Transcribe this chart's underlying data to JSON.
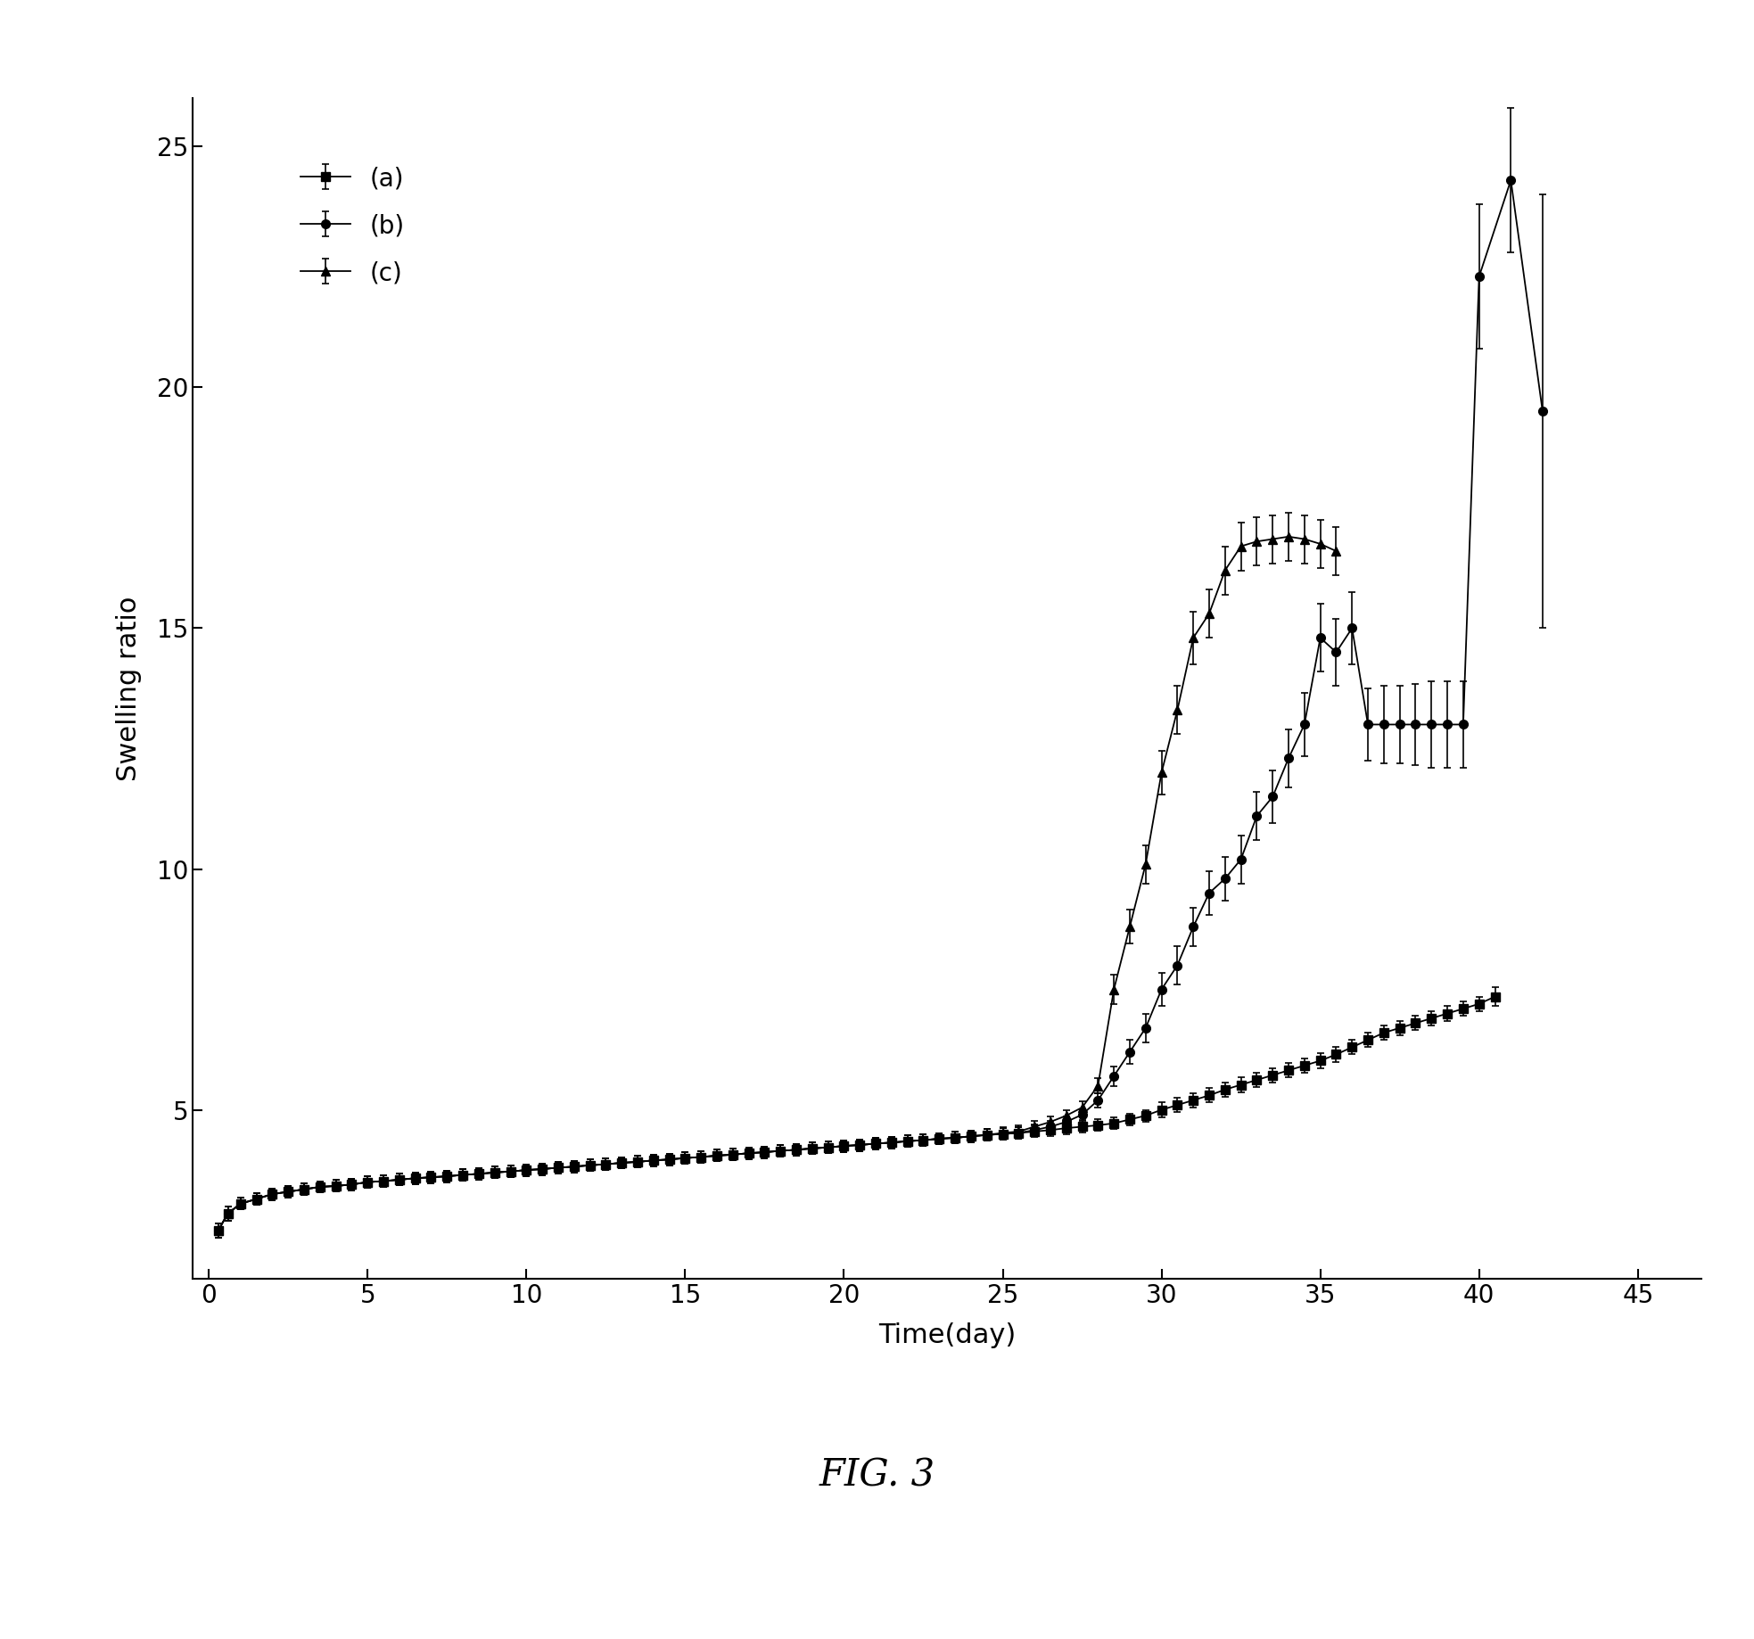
{
  "title": "",
  "xlabel": "Time(day)",
  "ylabel": "Swelling ratio",
  "fig_label": "FIG. 3",
  "xlim": [
    -0.5,
    47
  ],
  "ylim": [
    1.5,
    26
  ],
  "xticks": [
    0,
    5,
    10,
    15,
    20,
    25,
    30,
    35,
    40,
    45
  ],
  "yticks": [
    5,
    10,
    15,
    20,
    25
  ],
  "legend_labels": [
    "(a)",
    "(b)",
    "(c)"
  ],
  "series_a": {
    "x": [
      0.3,
      0.6,
      1,
      1.5,
      2,
      2.5,
      3,
      3.5,
      4,
      4.5,
      5,
      5.5,
      6,
      6.5,
      7,
      7.5,
      8,
      8.5,
      9,
      9.5,
      10,
      10.5,
      11,
      11.5,
      12,
      12.5,
      13,
      13.5,
      14,
      14.5,
      15,
      15.5,
      16,
      16.5,
      17,
      17.5,
      18,
      18.5,
      19,
      19.5,
      20,
      20.5,
      21,
      21.5,
      22,
      22.5,
      23,
      23.5,
      24,
      24.5,
      25,
      25.5,
      26,
      26.5,
      27,
      27.5,
      28,
      28.5,
      29,
      29.5,
      30,
      30.5,
      31,
      31.5,
      32,
      32.5,
      33,
      33.5,
      34,
      34.5,
      35,
      35.5,
      36,
      36.5,
      37,
      37.5,
      38,
      38.5,
      39,
      39.5,
      40,
      40.5
    ],
    "y": [
      2.5,
      2.85,
      3.05,
      3.15,
      3.25,
      3.3,
      3.35,
      3.4,
      3.42,
      3.45,
      3.5,
      3.52,
      3.55,
      3.58,
      3.6,
      3.62,
      3.65,
      3.67,
      3.7,
      3.72,
      3.75,
      3.77,
      3.8,
      3.82,
      3.85,
      3.87,
      3.9,
      3.92,
      3.95,
      3.97,
      4.0,
      4.02,
      4.05,
      4.07,
      4.1,
      4.12,
      4.15,
      4.17,
      4.2,
      4.22,
      4.25,
      4.27,
      4.3,
      4.32,
      4.35,
      4.37,
      4.4,
      4.42,
      4.45,
      4.48,
      4.5,
      4.52,
      4.55,
      4.58,
      4.62,
      4.65,
      4.68,
      4.72,
      4.8,
      4.88,
      5.0,
      5.1,
      5.2,
      5.3,
      5.42,
      5.52,
      5.62,
      5.72,
      5.82,
      5.92,
      6.02,
      6.15,
      6.3,
      6.45,
      6.6,
      6.7,
      6.8,
      6.9,
      7.0,
      7.1,
      7.2,
      7.35
    ],
    "yerr": [
      0.15,
      0.15,
      0.12,
      0.12,
      0.12,
      0.12,
      0.12,
      0.12,
      0.12,
      0.12,
      0.12,
      0.12,
      0.12,
      0.12,
      0.12,
      0.12,
      0.12,
      0.12,
      0.12,
      0.12,
      0.12,
      0.12,
      0.12,
      0.12,
      0.12,
      0.12,
      0.12,
      0.12,
      0.12,
      0.12,
      0.12,
      0.12,
      0.12,
      0.12,
      0.12,
      0.12,
      0.12,
      0.12,
      0.12,
      0.12,
      0.12,
      0.12,
      0.12,
      0.12,
      0.12,
      0.12,
      0.12,
      0.12,
      0.12,
      0.12,
      0.12,
      0.12,
      0.12,
      0.12,
      0.12,
      0.12,
      0.12,
      0.12,
      0.12,
      0.12,
      0.15,
      0.15,
      0.15,
      0.15,
      0.15,
      0.15,
      0.15,
      0.15,
      0.15,
      0.15,
      0.15,
      0.15,
      0.15,
      0.15,
      0.15,
      0.15,
      0.15,
      0.15,
      0.15,
      0.15,
      0.15,
      0.2
    ]
  },
  "series_b": {
    "x": [
      0.3,
      0.6,
      1,
      1.5,
      2,
      2.5,
      3,
      3.5,
      4,
      4.5,
      5,
      5.5,
      6,
      6.5,
      7,
      7.5,
      8,
      8.5,
      9,
      9.5,
      10,
      10.5,
      11,
      11.5,
      12,
      12.5,
      13,
      13.5,
      14,
      14.5,
      15,
      15.5,
      16,
      16.5,
      17,
      17.5,
      18,
      18.5,
      19,
      19.5,
      20,
      20.5,
      21,
      21.5,
      22,
      22.5,
      23,
      23.5,
      24,
      24.5,
      25,
      25.5,
      26,
      26.5,
      27,
      27.5,
      28,
      28.5,
      29,
      29.5,
      30,
      30.5,
      31,
      31.5,
      32,
      32.5,
      33,
      33.5,
      34,
      34.5,
      35,
      35.5,
      36,
      36.5,
      37,
      37.5,
      38,
      38.5,
      39,
      39.5,
      40,
      41,
      42
    ],
    "y": [
      2.5,
      2.85,
      3.05,
      3.15,
      3.25,
      3.3,
      3.35,
      3.4,
      3.42,
      3.45,
      3.5,
      3.52,
      3.55,
      3.58,
      3.6,
      3.62,
      3.65,
      3.67,
      3.7,
      3.72,
      3.75,
      3.77,
      3.8,
      3.82,
      3.85,
      3.87,
      3.9,
      3.92,
      3.95,
      3.97,
      4.0,
      4.02,
      4.05,
      4.07,
      4.1,
      4.12,
      4.15,
      4.17,
      4.2,
      4.22,
      4.25,
      4.27,
      4.3,
      4.32,
      4.35,
      4.37,
      4.4,
      4.42,
      4.45,
      4.48,
      4.5,
      4.52,
      4.58,
      4.65,
      4.75,
      4.9,
      5.2,
      5.7,
      6.2,
      6.7,
      7.5,
      8.0,
      8.8,
      9.5,
      9.8,
      10.2,
      11.1,
      11.5,
      12.3,
      13.0,
      14.8,
      14.5,
      15.0,
      13.0,
      13.0,
      13.0,
      13.0,
      13.0,
      13.0,
      13.0,
      22.3,
      24.3,
      19.5
    ],
    "yerr": [
      0.15,
      0.15,
      0.12,
      0.12,
      0.12,
      0.12,
      0.12,
      0.12,
      0.12,
      0.12,
      0.12,
      0.12,
      0.12,
      0.12,
      0.12,
      0.12,
      0.12,
      0.12,
      0.12,
      0.12,
      0.12,
      0.12,
      0.12,
      0.12,
      0.12,
      0.12,
      0.12,
      0.12,
      0.12,
      0.12,
      0.12,
      0.12,
      0.12,
      0.12,
      0.12,
      0.12,
      0.12,
      0.12,
      0.12,
      0.12,
      0.12,
      0.12,
      0.12,
      0.12,
      0.12,
      0.12,
      0.12,
      0.12,
      0.12,
      0.12,
      0.12,
      0.12,
      0.12,
      0.12,
      0.12,
      0.12,
      0.15,
      0.2,
      0.25,
      0.3,
      0.35,
      0.4,
      0.4,
      0.45,
      0.45,
      0.5,
      0.5,
      0.55,
      0.6,
      0.65,
      0.7,
      0.7,
      0.75,
      0.75,
      0.8,
      0.8,
      0.85,
      0.9,
      0.9,
      0.9,
      1.5,
      1.5,
      4.5
    ]
  },
  "series_c": {
    "x": [
      0.3,
      0.6,
      1,
      1.5,
      2,
      2.5,
      3,
      3.5,
      4,
      4.5,
      5,
      5.5,
      6,
      6.5,
      7,
      7.5,
      8,
      8.5,
      9,
      9.5,
      10,
      10.5,
      11,
      11.5,
      12,
      12.5,
      13,
      13.5,
      14,
      14.5,
      15,
      15.5,
      16,
      16.5,
      17,
      17.5,
      18,
      18.5,
      19,
      19.5,
      20,
      20.5,
      21,
      21.5,
      22,
      22.5,
      23,
      23.5,
      24,
      24.5,
      25,
      25.5,
      26,
      26.5,
      27,
      27.5,
      28,
      28.5,
      29,
      29.5,
      30,
      30.5,
      31,
      31.5,
      32,
      32.5,
      33,
      33.5,
      34,
      34.5,
      35,
      35.5
    ],
    "y": [
      2.5,
      2.85,
      3.05,
      3.15,
      3.25,
      3.3,
      3.35,
      3.4,
      3.42,
      3.45,
      3.5,
      3.52,
      3.55,
      3.58,
      3.6,
      3.62,
      3.65,
      3.67,
      3.7,
      3.72,
      3.75,
      3.77,
      3.8,
      3.82,
      3.85,
      3.87,
      3.9,
      3.92,
      3.95,
      3.97,
      4.0,
      4.02,
      4.05,
      4.07,
      4.1,
      4.12,
      4.15,
      4.17,
      4.2,
      4.22,
      4.25,
      4.27,
      4.3,
      4.32,
      4.35,
      4.37,
      4.4,
      4.42,
      4.45,
      4.48,
      4.52,
      4.55,
      4.65,
      4.75,
      4.88,
      5.05,
      5.5,
      7.5,
      8.8,
      10.1,
      12.0,
      13.3,
      14.8,
      15.3,
      16.2,
      16.7,
      16.8,
      16.85,
      16.9,
      16.85,
      16.75,
      16.6
    ],
    "yerr": [
      0.15,
      0.15,
      0.12,
      0.12,
      0.12,
      0.12,
      0.12,
      0.12,
      0.12,
      0.12,
      0.12,
      0.12,
      0.12,
      0.12,
      0.12,
      0.12,
      0.12,
      0.12,
      0.12,
      0.12,
      0.12,
      0.12,
      0.12,
      0.12,
      0.12,
      0.12,
      0.12,
      0.12,
      0.12,
      0.12,
      0.12,
      0.12,
      0.12,
      0.12,
      0.12,
      0.12,
      0.12,
      0.12,
      0.12,
      0.12,
      0.12,
      0.12,
      0.12,
      0.12,
      0.12,
      0.12,
      0.12,
      0.12,
      0.12,
      0.12,
      0.12,
      0.12,
      0.12,
      0.12,
      0.12,
      0.12,
      0.15,
      0.3,
      0.35,
      0.4,
      0.45,
      0.5,
      0.55,
      0.5,
      0.5,
      0.5,
      0.5,
      0.5,
      0.5,
      0.5,
      0.5,
      0.5
    ]
  },
  "marker_size": 7,
  "line_width": 1.3,
  "elinewidth": 1.2,
  "capsize": 3,
  "color": "black",
  "background_color": "#ffffff",
  "ylabel_fontsize": 22,
  "xlabel_fontsize": 22,
  "tick_fontsize": 20,
  "legend_fontsize": 20,
  "fig_label_fontsize": 30
}
